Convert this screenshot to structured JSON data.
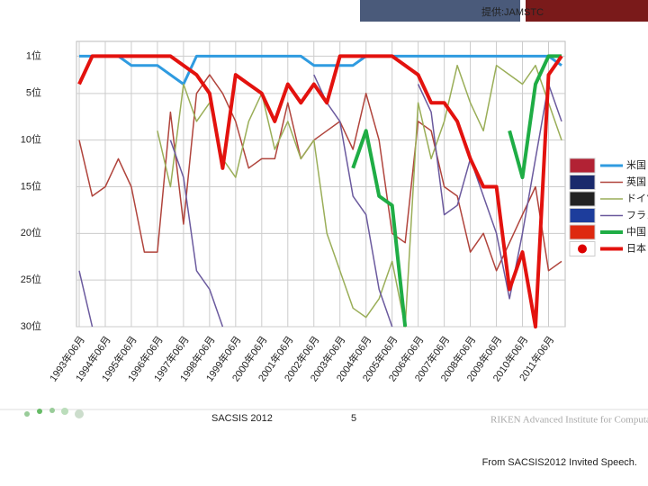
{
  "chart_data": {
    "type": "line",
    "categories": [
      "1993年06月",
      null,
      "1994年06月",
      null,
      "1995年06月",
      null,
      "1996年06月",
      null,
      "1997年06月",
      null,
      "1998年06月",
      null,
      "1999年06月",
      null,
      "2000年06月",
      null,
      "2001年06月",
      null,
      "2002年06月",
      null,
      "2003年06月",
      null,
      "2004年06月",
      null,
      "2005年06月",
      null,
      "2006年06月",
      null,
      "2007年06月",
      null,
      "2008年06月",
      null,
      "2009年06月",
      null,
      "2010年06月",
      null,
      "2011年06月",
      null
    ],
    "ylim": [
      0,
      30
    ],
    "yticks": [
      {
        "value": 1,
        "label": "1位"
      },
      {
        "value": 5,
        "label": "5位"
      },
      {
        "value": 10,
        "label": "10位"
      },
      {
        "value": 15,
        "label": "15位"
      },
      {
        "value": 20,
        "label": "20位"
      },
      {
        "value": 25,
        "label": "25位"
      },
      {
        "value": 30,
        "label": "30位"
      }
    ],
    "y_inverted": true,
    "grid": true,
    "legend": "right",
    "series": [
      {
        "name": "米国",
        "color": "#2f9be0",
        "width": 3,
        "values": [
          1,
          1,
          1,
          1,
          2,
          2,
          2,
          3,
          4,
          1,
          1,
          1,
          1,
          1,
          1,
          1,
          1,
          1,
          2,
          2,
          2,
          2,
          1,
          1,
          1,
          1,
          1,
          1,
          1,
          1,
          1,
          1,
          1,
          1,
          1,
          1,
          1,
          2
        ]
      },
      {
        "name": "英国",
        "color": "#b0443c",
        "width": 1.5,
        "values": [
          10,
          16,
          15,
          12,
          15,
          22,
          22,
          7,
          19,
          5,
          3,
          5,
          8,
          13,
          12,
          12,
          6,
          12,
          10,
          9,
          8,
          11,
          5,
          10,
          20,
          21,
          8,
          9,
          15,
          16,
          22,
          20,
          24,
          21,
          18,
          15,
          24,
          23
        ]
      },
      {
        "name": "ドイツ",
        "color": "#9aae58",
        "width": 1.5,
        "values": [
          null,
          null,
          null,
          null,
          null,
          null,
          9,
          15,
          4,
          8,
          6,
          12,
          14,
          8,
          5,
          11,
          8,
          12,
          10,
          20,
          24,
          28,
          29,
          27,
          23,
          30,
          6,
          12,
          8,
          2,
          6,
          9,
          2,
          3,
          4,
          2,
          6,
          10
        ]
      },
      {
        "name": "フランス",
        "color": "#6b5a9e",
        "width": 1.5,
        "values": [
          24,
          30,
          null,
          null,
          null,
          null,
          null,
          10,
          14,
          24,
          26,
          30,
          null,
          null,
          null,
          null,
          null,
          null,
          3,
          6,
          8,
          16,
          18,
          26,
          30,
          null,
          4,
          7,
          18,
          17,
          12,
          16,
          20,
          27,
          20,
          12,
          4,
          8
        ]
      },
      {
        "name": "中国",
        "color": "#1fad45",
        "width": 4,
        "values": [
          null,
          null,
          null,
          null,
          null,
          null,
          null,
          null,
          null,
          null,
          null,
          null,
          null,
          null,
          null,
          null,
          null,
          null,
          null,
          null,
          null,
          13,
          9,
          16,
          17,
          30,
          null,
          null,
          null,
          null,
          null,
          null,
          null,
          9,
          14,
          4,
          1,
          1
        ]
      },
      {
        "name": "日本",
        "color": "#e3120e",
        "width": 4,
        "values": [
          4,
          1,
          1,
          1,
          1,
          1,
          1,
          1,
          2,
          3,
          5,
          13,
          3,
          4,
          5,
          8,
          4,
          6,
          4,
          6,
          1,
          1,
          1,
          1,
          1,
          2,
          3,
          6,
          6,
          8,
          12,
          15,
          15,
          26,
          22,
          30,
          3,
          1
        ]
      }
    ]
  },
  "credit": "提供:JAMSTC",
  "footer": {
    "event": "SACSIS 2012",
    "page": "5",
    "org": "RIKEN Advanced Institute for Computational Science"
  },
  "caption": "From SACSIS2012 Invited Speech."
}
